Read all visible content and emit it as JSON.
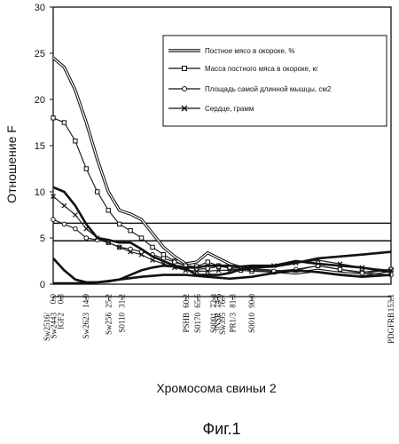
{
  "chart_data": {
    "type": "line",
    "ylabel": "Отношение F",
    "xlabel": "Хромосома свиньи 2",
    "figure_caption": "Фиг.1",
    "ylim": [
      0,
      30
    ],
    "xlim": [
      0,
      153.1
    ],
    "yticks": [
      0,
      5,
      10,
      15,
      20,
      25,
      30
    ],
    "thresholds": [
      4.7,
      6.6
    ],
    "markers": [
      {
        "name": "Sw2516/",
        "pos": 0.0,
        "pos_label": "0.0"
      },
      {
        "name": "Sw2443",
        "pos": 0.3,
        "pos_label": "0.3"
      },
      {
        "name": "IGF2",
        "pos": 0.3,
        "pos_label": ""
      },
      {
        "name": "Sw2623",
        "pos": 14.9,
        "pos_label": "14.9"
      },
      {
        "name": "Sw256",
        "pos": 25.2,
        "pos_label": "25.2"
      },
      {
        "name": "S0110",
        "pos": 31.2,
        "pos_label": "31.2"
      },
      {
        "name": "PSHB",
        "pos": 60.2,
        "pos_label": "60.2"
      },
      {
        "name": "S0170",
        "pos": 65.5,
        "pos_label": "65.5"
      },
      {
        "name": "S0091",
        "pos": 72.8,
        "pos_label": "72.8"
      },
      {
        "name": "INSR",
        "pos": 74.6,
        "pos_label": "74.6"
      },
      {
        "name": "Sw395",
        "pos": 76.7,
        "pos_label": "76.7"
      },
      {
        "name": "PR1/3",
        "pos": 81.3,
        "pos_label": "81.3"
      },
      {
        "name": "S0010",
        "pos": 90.0,
        "pos_label": "90.0"
      },
      {
        "name": "PDGFRB",
        "pos": 153.1,
        "pos_label": "153.1"
      }
    ],
    "series": [
      {
        "name": "Постное мясо в окороке, %",
        "style": "double",
        "x": [
          0,
          5,
          10,
          15,
          20,
          25,
          30,
          35,
          40,
          45,
          50,
          55,
          60,
          65,
          70,
          75,
          80,
          85,
          90,
          100,
          110,
          120,
          130,
          140,
          153.1
        ],
        "y": [
          24.5,
          23.5,
          21.0,
          17.5,
          13.5,
          10.0,
          8.0,
          7.6,
          7.0,
          5.5,
          4.0,
          3.0,
          2.2,
          2.4,
          3.4,
          2.8,
          2.2,
          1.8,
          1.6,
          1.4,
          1.2,
          1.5,
          1.2,
          1.0,
          1.5
        ]
      },
      {
        "name": "Масса постного мяса в окороке, кг",
        "style": "squares",
        "x": [
          0,
          5,
          10,
          15,
          20,
          25,
          30,
          35,
          40,
          45,
          50,
          55,
          60,
          65,
          70,
          75,
          80,
          85,
          90,
          100,
          110,
          120,
          130,
          140,
          153.1
        ],
        "y": [
          18.0,
          17.5,
          15.5,
          12.5,
          10.0,
          8.0,
          6.5,
          5.8,
          5.0,
          4.0,
          3.2,
          2.5,
          2.0,
          1.9,
          2.4,
          2.0,
          1.7,
          1.5,
          1.4,
          1.3,
          1.5,
          2.0,
          1.6,
          1.3,
          1.6
        ]
      },
      {
        "name": "Площадь самой длинной мышцы, см2",
        "style": "circles",
        "x": [
          0,
          5,
          10,
          15,
          20,
          25,
          30,
          35,
          40,
          45,
          50,
          55,
          60,
          65,
          70,
          75,
          80,
          85,
          90,
          100,
          110,
          120,
          130,
          140,
          153.1
        ],
        "y": [
          7.0,
          6.5,
          6.0,
          5.0,
          4.8,
          4.5,
          4.0,
          3.8,
          3.5,
          3.2,
          2.8,
          2.4,
          2.0,
          1.6,
          1.7,
          1.9,
          1.8,
          1.7,
          1.6,
          1.4,
          1.6,
          2.0,
          1.6,
          1.2,
          1.0
        ]
      },
      {
        "name": "Сердце, грамм",
        "style": "crosses",
        "x": [
          0,
          5,
          10,
          15,
          20,
          25,
          30,
          35,
          40,
          45,
          50,
          55,
          60,
          65,
          70,
          75,
          80,
          85,
          90,
          100,
          110,
          120,
          130,
          140,
          153.1
        ],
        "y": [
          9.5,
          8.5,
          7.5,
          6.0,
          5.0,
          4.5,
          4.0,
          3.5,
          3.2,
          2.6,
          2.2,
          1.8,
          1.5,
          1.4,
          1.4,
          1.5,
          1.5,
          1.6,
          1.7,
          2.0,
          2.3,
          2.6,
          2.2,
          1.8,
          1.5
        ]
      },
      {
        "name": "",
        "style": "thick",
        "x": [
          0,
          5,
          10,
          15,
          20,
          25,
          30,
          35,
          40,
          45,
          50,
          55,
          60,
          65,
          70,
          75,
          80,
          85,
          90,
          100,
          110,
          120,
          130,
          140,
          153.1
        ],
        "y": [
          10.5,
          10.0,
          8.5,
          6.5,
          5.0,
          4.8,
          4.5,
          4.5,
          3.8,
          3.0,
          2.5,
          2.0,
          1.8,
          1.8,
          2.0,
          2.0,
          2.0,
          1.9,
          2.0,
          2.0,
          2.5,
          2.2,
          2.0,
          1.8,
          1.3
        ]
      },
      {
        "name": "",
        "style": "thick",
        "x": [
          0,
          5,
          10,
          15,
          20,
          25,
          30,
          35,
          40,
          45,
          50,
          55,
          60,
          65,
          70,
          75,
          80,
          85,
          90,
          100,
          110,
          120,
          130,
          140,
          153.1
        ],
        "y": [
          2.8,
          1.5,
          0.5,
          0.2,
          0.2,
          0.3,
          0.5,
          1.0,
          1.5,
          1.8,
          2.0,
          1.9,
          1.7,
          1.0,
          1.0,
          1.0,
          1.2,
          1.6,
          1.8,
          1.9,
          2.3,
          2.8,
          3.0,
          3.2,
          3.5
        ]
      },
      {
        "name": "",
        "style": "thick",
        "x": [
          0,
          10,
          20,
          30,
          40,
          50,
          60,
          70,
          80,
          90,
          100,
          110,
          120,
          130,
          140,
          153.1
        ],
        "y": [
          0.1,
          0.1,
          0.2,
          0.5,
          0.8,
          1.0,
          1.0,
          0.8,
          0.6,
          0.8,
          1.2,
          1.5,
          1.3,
          1.0,
          0.8,
          1.0
        ]
      }
    ]
  }
}
